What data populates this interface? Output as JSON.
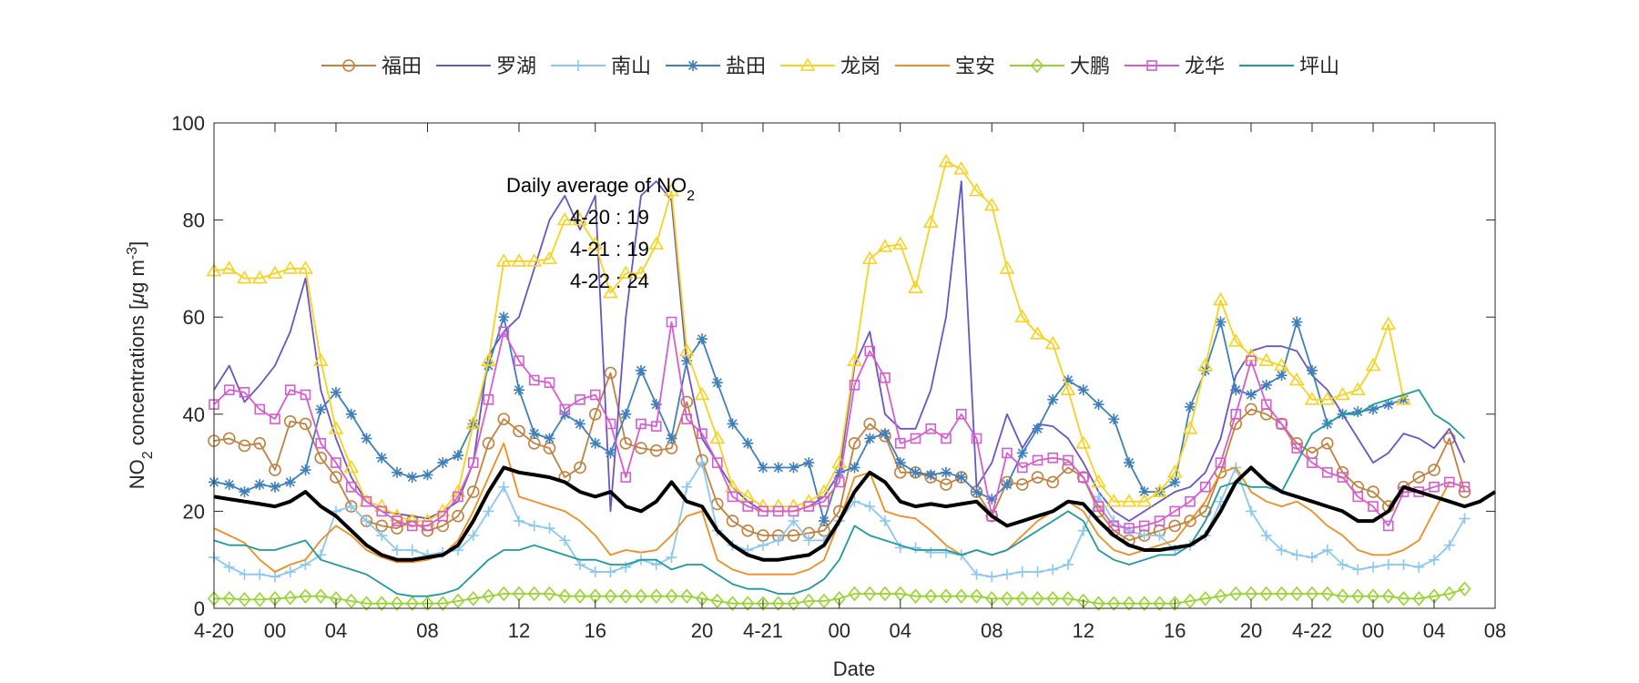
{
  "chart_data": {
    "type": "line",
    "xlabel": "Date",
    "ylabel_parts": {
      "pre": "NO",
      "sub": "2",
      "mid": " concentrations [",
      "mu": "μ",
      "unit": "g m",
      "sup": "-3",
      "post": "]"
    },
    "ylim": [
      0,
      100
    ],
    "xlim": [
      0,
      84
    ],
    "yticks": [
      0,
      20,
      40,
      60,
      80,
      100
    ],
    "xticks": [
      {
        "x": 0,
        "label": "4-20"
      },
      {
        "x": 4,
        "label": "00"
      },
      {
        "x": 8,
        "label": "04"
      },
      {
        "x": 14,
        "label": "08"
      },
      {
        "x": 20,
        "label": "12"
      },
      {
        "x": 25,
        "label": "16"
      },
      {
        "x": 32,
        "label": "20"
      },
      {
        "x": 36,
        "label": "4-21"
      },
      {
        "x": 41,
        "label": "00"
      },
      {
        "x": 45,
        "label": "04"
      },
      {
        "x": 51,
        "label": "08"
      },
      {
        "x": 57,
        "label": "12"
      },
      {
        "x": 63,
        "label": "16"
      },
      {
        "x": 68,
        "label": "20"
      },
      {
        "x": 72,
        "label": "4-22"
      },
      {
        "x": 76,
        "label": "00"
      },
      {
        "x": 80,
        "label": "04"
      },
      {
        "x": 84,
        "label": "08"
      }
    ],
    "annotation": {
      "title_pre": "Daily average of NO",
      "title_sub": "2",
      "lines": [
        "4-20 : 19",
        "4-21 : 19",
        "4-22 : 24"
      ]
    },
    "average": {
      "name": "daily average",
      "color": "#000000",
      "values": [
        23,
        22.5,
        22,
        21.5,
        21,
        22,
        24,
        21,
        19,
        16,
        13,
        11,
        10,
        10,
        10.5,
        11,
        13,
        18,
        24,
        29,
        28,
        27.5,
        27,
        26,
        24,
        23,
        24,
        21,
        20,
        22,
        26,
        22,
        21,
        16,
        13,
        11,
        10,
        10,
        10.5,
        11,
        13,
        18,
        24,
        28,
        26,
        22,
        21,
        21.5,
        21,
        21.5,
        22,
        19,
        17,
        18,
        19,
        20,
        22,
        21.5,
        18,
        15,
        13,
        12,
        12,
        12.5,
        13,
        15,
        20,
        26,
        29,
        26,
        24,
        23,
        22,
        21,
        20,
        18,
        18,
        20,
        25,
        24,
        23,
        22,
        21,
        22,
        24
      ]
    },
    "series": [
      {
        "name": "福田",
        "color": "#c1813f",
        "marker": "circle",
        "values": [
          34.5,
          35,
          33.5,
          34,
          28.5,
          38.5,
          38,
          31,
          27,
          21,
          18,
          17,
          16.5,
          18,
          16,
          17,
          19,
          24,
          34,
          39,
          36.5,
          34,
          33,
          27,
          29,
          40,
          48.5,
          34,
          33,
          32.5,
          33,
          42.5,
          30.5,
          21.5,
          18,
          16,
          15,
          15,
          15,
          15.5,
          16,
          20,
          34,
          38,
          35.5,
          28,
          28,
          27,
          25.5,
          27,
          24,
          19,
          26,
          25.5,
          27,
          26,
          29,
          27,
          20,
          16,
          14,
          15,
          16,
          17,
          18,
          20,
          28,
          38,
          41,
          40,
          38,
          34,
          32,
          34,
          28,
          25,
          24,
          21,
          25,
          27,
          28.5,
          35,
          24
        ]
      },
      {
        "name": "罗湖",
        "color": "#6a55c4",
        "marker": "none",
        "values": [
          45,
          50,
          42.5,
          46,
          50,
          57,
          68,
          45,
          35,
          27,
          22,
          20,
          19.5,
          19,
          18.5,
          20,
          22,
          30,
          52,
          57,
          60,
          70,
          80,
          85,
          78,
          85,
          20,
          60,
          85,
          88,
          84,
          50,
          35,
          30,
          25,
          22,
          20,
          20,
          20,
          21,
          23,
          28,
          50,
          57,
          40,
          37,
          37,
          45,
          60,
          88,
          25,
          30,
          40,
          33,
          38,
          37.5,
          35,
          30,
          24,
          20,
          18,
          20,
          22,
          24,
          25,
          28,
          35,
          48,
          53,
          54,
          54,
          53,
          48,
          45,
          40,
          35,
          30,
          32,
          36,
          35,
          33,
          37,
          30
        ]
      },
      {
        "name": "南山",
        "color": "#8bc8f0",
        "marker": "plus",
        "values": [
          10.5,
          8.5,
          7,
          7,
          6.5,
          7.5,
          9,
          11,
          20,
          21,
          18,
          15,
          12,
          12,
          11,
          11.5,
          12,
          15,
          20,
          25,
          18,
          17,
          16.5,
          14,
          9,
          7.5,
          7.5,
          8.5,
          10,
          9,
          10.5,
          25,
          30,
          16,
          13,
          12,
          13,
          14,
          18,
          14,
          14,
          18,
          22,
          21,
          18,
          12.5,
          12.5,
          11.5,
          11.5,
          11,
          7,
          6.5,
          7,
          7.5,
          7.5,
          8,
          9,
          16,
          23,
          18,
          16,
          15,
          15,
          12,
          13,
          15,
          22,
          29,
          20,
          15,
          12,
          11,
          10.5,
          12,
          9,
          8,
          8.5,
          9,
          9,
          8.5,
          10,
          13,
          18.5
        ]
      },
      {
        "name": "盐田",
        "color": "#3f7fba",
        "marker": "star",
        "values": [
          26,
          25.5,
          24,
          25.5,
          25,
          26,
          28.5,
          41,
          44.5,
          40,
          35,
          31,
          28,
          27,
          27.5,
          30,
          31.5,
          38,
          50,
          60,
          45,
          36,
          35,
          40,
          38,
          34,
          32,
          40,
          49,
          42,
          35,
          51,
          55.5,
          46.5,
          38,
          34,
          29,
          29,
          29,
          30,
          18,
          28,
          29,
          35,
          36,
          30,
          28,
          27.5,
          28,
          27,
          24,
          22.5,
          25.5,
          32,
          37,
          43,
          47,
          45,
          42,
          39,
          30,
          24,
          24,
          26,
          41.5,
          49,
          59,
          45,
          44,
          46,
          48,
          59,
          49,
          38,
          40,
          40.5,
          41,
          42,
          43
        ]
      },
      {
        "name": "龙岗",
        "color": "#f7d21e",
        "marker": "triangle",
        "values": [
          69.5,
          70,
          68,
          68,
          69,
          70,
          70,
          51,
          37,
          29,
          22,
          21,
          19,
          18,
          18,
          20,
          24,
          38,
          51,
          71.5,
          71.5,
          71.5,
          72,
          80,
          80,
          75,
          65,
          69,
          69,
          75,
          86,
          53,
          44,
          35,
          25,
          23,
          21,
          21,
          21,
          22,
          24,
          30,
          51,
          72,
          74.5,
          75,
          66,
          79.5,
          92,
          90.5,
          86,
          83,
          70,
          60,
          56.5,
          54.5,
          45,
          34,
          26,
          22,
          22,
          22,
          24,
          28,
          37,
          50,
          63.5,
          55,
          52,
          51,
          50,
          47,
          43,
          43,
          44,
          45,
          50,
          58.5,
          43
        ]
      },
      {
        "name": "宝安",
        "color": "#f08c20",
        "marker": "none",
        "values": [
          16.5,
          15,
          13.5,
          10,
          7.5,
          9,
          10,
          14,
          17,
          15,
          12,
          10.5,
          9.5,
          9.5,
          10,
          11,
          14,
          20,
          27,
          34,
          23,
          22,
          21,
          20,
          18,
          15,
          11,
          12,
          11.5,
          12,
          15,
          19,
          20,
          10,
          8,
          7,
          7,
          7,
          7,
          8,
          10,
          18,
          27,
          28,
          20,
          19,
          18.5,
          16,
          13,
          11,
          12,
          11,
          12,
          15,
          18,
          20,
          22,
          20,
          15,
          12,
          11,
          12,
          13,
          14,
          18,
          22,
          28,
          29,
          24,
          22,
          21,
          22,
          20,
          17,
          15,
          12,
          11,
          11,
          12,
          14,
          20,
          26,
          25
        ]
      },
      {
        "name": "大鹏",
        "color": "#97d430",
        "marker": "diamond",
        "values": [
          2,
          2,
          1.8,
          1.8,
          2,
          2.2,
          2.5,
          2.5,
          2,
          1.5,
          1,
          1,
          1,
          1,
          1,
          1,
          1.5,
          2,
          2.5,
          3,
          3,
          3,
          3,
          2.5,
          2.5,
          2.5,
          2.5,
          2.5,
          2.5,
          2.5,
          2.5,
          2.5,
          2,
          1.5,
          1,
          1,
          1,
          1,
          1,
          1.5,
          1.5,
          2,
          3,
          3,
          3,
          3,
          2.5,
          2.5,
          2.5,
          2.5,
          2.5,
          2,
          2,
          2,
          2,
          2,
          2,
          1.5,
          1,
          1,
          1,
          1,
          1,
          1,
          1.5,
          2,
          2.5,
          3,
          3,
          3,
          3,
          3,
          3,
          3,
          2.5,
          2.5,
          2.5,
          2.5,
          2,
          2,
          2.5,
          3,
          4
        ]
      },
      {
        "name": "龙华",
        "color": "#d65cd0",
        "marker": "square",
        "values": [
          42,
          45,
          44.5,
          41,
          39,
          45,
          44,
          34,
          30,
          25,
          22,
          20,
          18,
          17,
          17,
          19,
          23,
          30,
          43,
          57,
          51,
          47,
          46.5,
          41,
          43,
          44,
          38,
          27,
          38,
          37.5,
          59,
          39,
          36,
          30,
          23,
          21,
          20,
          20,
          20,
          21,
          22,
          26,
          46,
          53,
          47.5,
          34,
          35,
          37,
          35,
          40,
          35,
          19,
          32,
          29,
          30.5,
          31,
          30.5,
          27,
          21,
          17,
          16.5,
          17,
          18,
          20,
          22,
          25,
          30,
          40,
          51,
          42,
          38,
          33,
          30,
          28,
          27,
          23,
          21,
          17,
          24,
          24,
          25,
          26,
          25
        ]
      },
      {
        "name": "坪山",
        "color": "#1f9a9a",
        "marker": "none",
        "values": [
          14,
          13,
          13,
          12,
          12,
          13,
          14,
          10,
          9,
          8,
          7,
          5,
          3,
          2.5,
          2.5,
          3,
          4,
          7,
          10,
          12,
          12,
          13,
          12,
          11,
          10,
          10,
          9,
          9,
          10,
          10,
          8,
          9,
          9,
          7,
          5,
          4,
          4,
          3,
          3,
          4,
          6,
          10,
          17,
          15,
          14,
          13,
          12,
          12,
          12,
          11,
          12,
          11,
          12,
          14,
          16,
          18,
          20,
          18,
          12,
          10,
          9,
          10,
          11,
          11,
          13,
          18,
          25,
          26,
          25,
          25,
          24,
          30,
          36,
          38,
          40,
          40,
          42,
          43,
          44,
          45,
          40,
          38,
          35
        ]
      }
    ]
  }
}
